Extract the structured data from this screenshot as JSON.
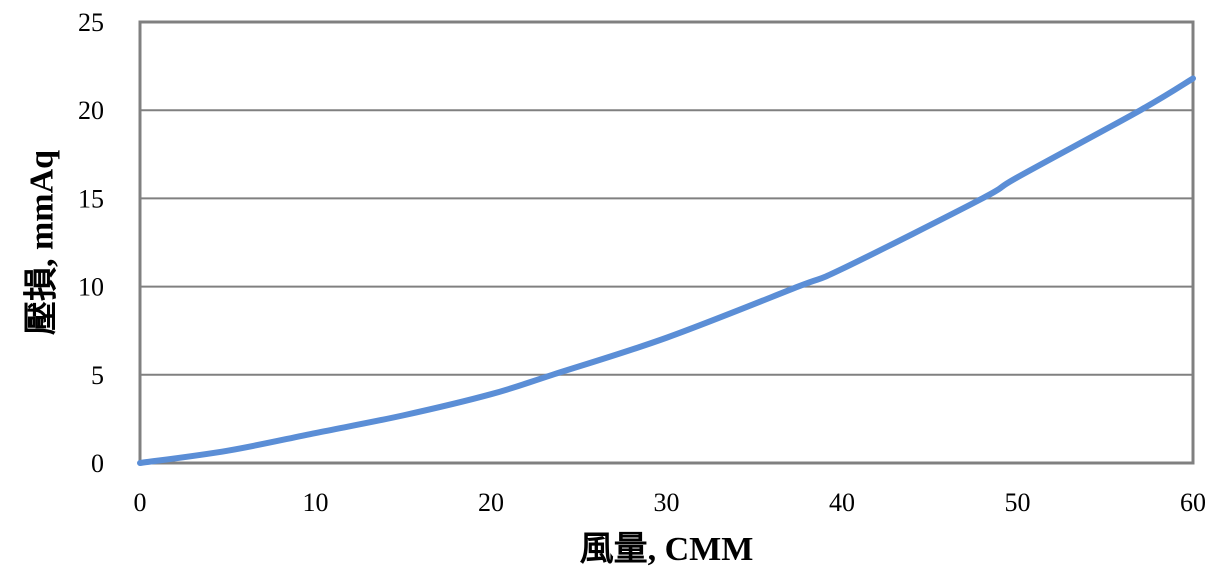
{
  "chart_data": {
    "type": "line",
    "title": "",
    "xlabel": "風量, CMM",
    "ylabel": "壓損, mmAq",
    "xlim": [
      0,
      60
    ],
    "ylim": [
      0,
      25
    ],
    "x_ticks": [
      "0",
      "10",
      "20",
      "30",
      "40",
      "50",
      "60"
    ],
    "y_ticks": [
      "0",
      "5",
      "10",
      "15",
      "20",
      "25"
    ],
    "grid": "horizontal",
    "legend": "none",
    "series": [
      {
        "color": "#5B8ED6",
        "x": [
          0,
          5,
          10,
          15,
          20,
          23.5,
          30,
          37.5,
          40,
          48,
          50,
          57,
          60
        ],
        "y": [
          0,
          0.7,
          1.7,
          2.7,
          3.9,
          5.0,
          7.1,
          10.0,
          11.0,
          15.0,
          16.2,
          20.0,
          21.8
        ]
      }
    ]
  }
}
